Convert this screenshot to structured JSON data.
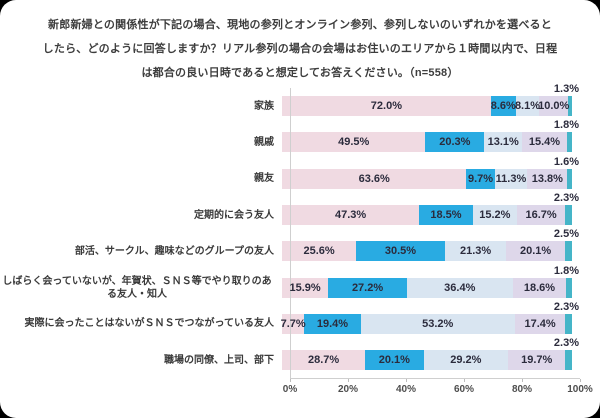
{
  "title": {
    "lines": [
      "新郎新婦との関係性が下記の場合、現地の参列とオンライン参列、参列しないのいずれかを選べると",
      "したら、どのように回答しますか？リアル参列の場合の会場はお住いのエリアから１時間以内で、日程",
      "は都合の良い日時であると想定してお答えください。（n=558）"
    ]
  },
  "chart_data": {
    "type": "bar",
    "orientation": "horizontal",
    "stacked": true,
    "unit": "%",
    "xlim": [
      0,
      100
    ],
    "x_ticks": [
      "0%",
      "20%",
      "40%",
      "60%",
      "80%",
      "100%"
    ],
    "grid": false,
    "legend": "none",
    "value_label_format": "one-decimal-percent",
    "categories": [
      "家族",
      "親戚",
      "親友",
      "定期的に会う友人",
      "部活、サークル、趣味などのグループの友人",
      "しばらく会っていないが、年賀状、ＳＮＳ等でやり取りのある友人・知人",
      "実際に会ったことはないがＳＮＳでつながっている友人",
      "職場の同僚、上司、部下"
    ],
    "series": [
      {
        "name": "series-1-pink",
        "color": "#f0dae2",
        "label_position": "inside",
        "values": [
          72.0,
          49.5,
          63.6,
          47.3,
          25.6,
          15.9,
          7.7,
          28.7
        ]
      },
      {
        "name": "series-2-blue",
        "color": "#29abe2",
        "label_position": "inside",
        "values": [
          8.6,
          20.3,
          9.7,
          18.5,
          30.5,
          27.2,
          19.4,
          20.1
        ]
      },
      {
        "name": "series-3-pale-blue",
        "color": "#d9e5f1",
        "label_position": "inside",
        "values": [
          8.1,
          13.1,
          11.3,
          15.2,
          21.3,
          36.4,
          53.2,
          29.2
        ]
      },
      {
        "name": "series-4-pale-purple",
        "color": "#ded7ea",
        "label_position": "inside",
        "values": [
          10.0,
          15.4,
          13.8,
          16.7,
          20.1,
          18.6,
          17.4,
          19.7
        ]
      },
      {
        "name": "series-5-teal",
        "color": "#45b5c8",
        "label_position": "above-right",
        "values": [
          1.3,
          1.8,
          1.6,
          2.3,
          2.5,
          1.8,
          2.3,
          2.3
        ]
      }
    ]
  }
}
